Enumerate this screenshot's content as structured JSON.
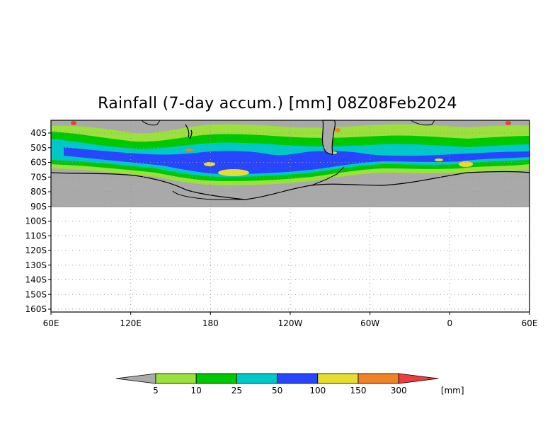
{
  "title": "Rainfall (7-day accum.) [mm] 08Z08Feb2024",
  "map": {
    "lon_labels": [
      "60E",
      "120E",
      "180",
      "120W",
      "60W",
      "0",
      "60E"
    ],
    "lat_labels": [
      "40S",
      "50S",
      "60S",
      "70S",
      "80S",
      "90S",
      "100S",
      "110S",
      "120S",
      "130S",
      "140S",
      "150S",
      "160S"
    ],
    "land_color": "#a9a9a9",
    "coast_color": "#000000"
  },
  "legend": {
    "unit": "[mm]",
    "thresholds": [
      "5",
      "10",
      "25",
      "50",
      "100",
      "150",
      "300"
    ],
    "colors": [
      "#aaaaaa",
      "#9be03c",
      "#00c800",
      "#00c8c8",
      "#2846ff",
      "#e6dc32",
      "#f08228",
      "#f03c3c"
    ]
  }
}
